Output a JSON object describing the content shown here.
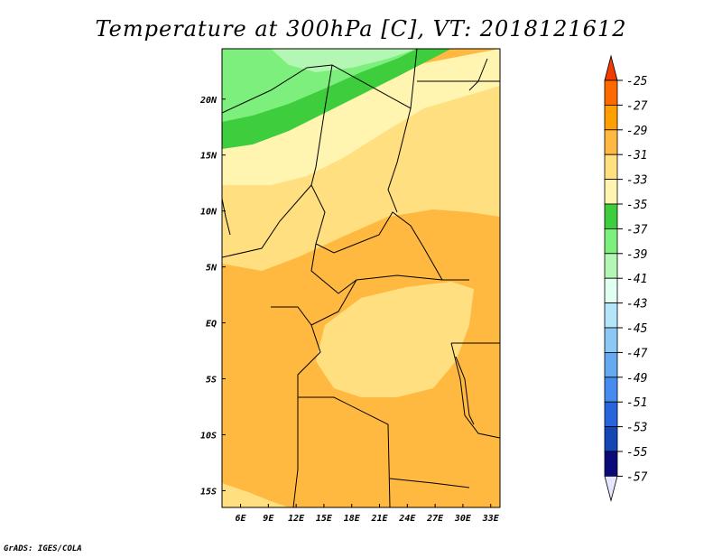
{
  "title": "Temperature at 300hPa [C], VT: 2018121612",
  "credit": "GrADS: IGES/COLA",
  "map": {
    "lon_range": [
      4,
      34
    ],
    "lat_range": [
      -16.5,
      24.5
    ],
    "lon_ticks": [
      {
        "lon": 6,
        "label": "6E"
      },
      {
        "lon": 9,
        "label": "9E"
      },
      {
        "lon": 12,
        "label": "12E"
      },
      {
        "lon": 15,
        "label": "15E"
      },
      {
        "lon": 18,
        "label": "18E"
      },
      {
        "lon": 21,
        "label": "21E"
      },
      {
        "lon": 24,
        "label": "24E"
      },
      {
        "lon": 27,
        "label": "27E"
      },
      {
        "lon": 30,
        "label": "30E"
      },
      {
        "lon": 33,
        "label": "33E"
      }
    ],
    "lat_ticks": [
      {
        "lat": 20,
        "label": "20N"
      },
      {
        "lat": 15,
        "label": "15N"
      },
      {
        "lat": 10,
        "label": "10N"
      },
      {
        "lat": 5,
        "label": "5N"
      },
      {
        "lat": 0,
        "label": "EQ"
      },
      {
        "lat": -5,
        "label": "5S"
      },
      {
        "lat": -10,
        "label": "10S"
      },
      {
        "lat": -15,
        "label": "15S"
      }
    ]
  },
  "colorbar": {
    "levels": [
      "-25",
      "-27",
      "-29",
      "-31",
      "-33",
      "-35",
      "-37",
      "-39",
      "-41",
      "-43",
      "-45",
      "-47",
      "-49",
      "-51",
      "-53",
      "-55",
      "-57"
    ],
    "colors": [
      "#ff6a00",
      "#ffa000",
      "#ffb940",
      "#ffdf80",
      "#fff5b0",
      "#3dcd3d",
      "#7cef7c",
      "#b4f7b4",
      "#e0fff0",
      "#b4e6fa",
      "#8cc8f5",
      "#64aaf0",
      "#468cf0",
      "#2864dc",
      "#1446b4",
      "#0a0a78"
    ],
    "top_arrow_color": "#f03c00",
    "bottom_arrow_color": "#e6e6ff"
  }
}
